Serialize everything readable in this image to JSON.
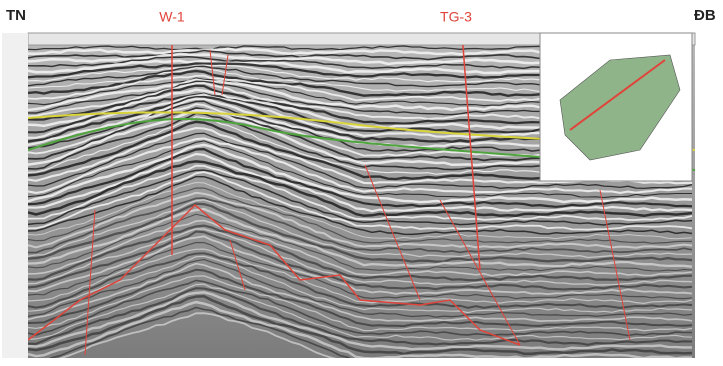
{
  "labels": {
    "left": "TN",
    "right": "ĐB"
  },
  "wells": [
    {
      "name": "W-1"
    },
    {
      "name": "TG-3"
    }
  ]
}
